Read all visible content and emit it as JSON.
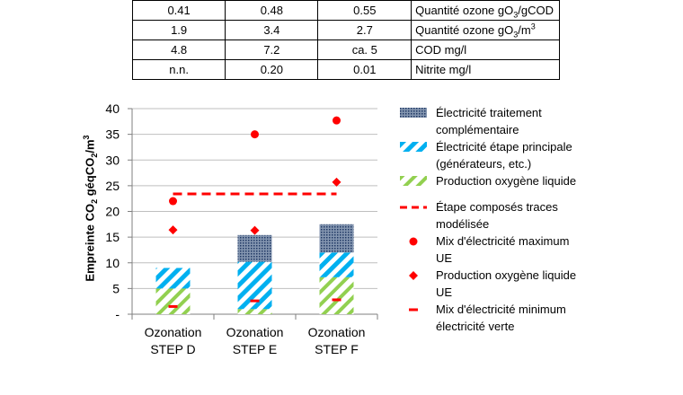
{
  "table": {
    "rows": [
      {
        "d": "0.41",
        "e": "0.48",
        "f": "0.55",
        "label": "Quantité ozone gO",
        "sub": "3",
        "suffix": "/gCOD",
        "sup": ""
      },
      {
        "d": "1.9",
        "e": "3.4",
        "f": "2.7",
        "label": "Quantité ozone gO",
        "sub": "3",
        "suffix": "/m",
        "sup": "3"
      },
      {
        "d": "4.8",
        "e": "7.2",
        "f": "ca. 5",
        "label": "COD mg/l",
        "sub": "",
        "suffix": "",
        "sup": ""
      },
      {
        "d": "n.n.",
        "e": "0.20",
        "f": "0.01",
        "label": "Nitrite mg/l",
        "sub": "",
        "suffix": "",
        "sup": ""
      }
    ]
  },
  "chart_data": {
    "type": "bar",
    "stacked": true,
    "ylabel": {
      "prefix": "Empreinte CO",
      "sub1": "2",
      "mid": " géqCO",
      "sub2": "2",
      "mid2": "/m",
      "sup": "3"
    },
    "ylim": [
      0,
      40
    ],
    "yticks": [
      "-",
      "5",
      "10",
      "15",
      "20",
      "25",
      "30",
      "35",
      "40"
    ],
    "ytick_values": [
      0,
      5,
      10,
      15,
      20,
      25,
      30,
      35,
      40
    ],
    "grid": true,
    "categories": [
      [
        "Ozonation",
        "STEP D"
      ],
      [
        "Ozonation",
        "STEP E"
      ],
      [
        "Ozonation",
        "STEP F"
      ]
    ],
    "series": [
      {
        "name": "Production oxygène liquide",
        "values": [
          5.0,
          1.0,
          7.2
        ],
        "color": "#92d050",
        "pattern": "diag-green"
      },
      {
        "name": "Électricité étape principale (générateurs, etc.)",
        "values": [
          4.0,
          9.2,
          4.8
        ],
        "color": "#00b0f0",
        "pattern": "diag-blue"
      },
      {
        "name": "Électricité traitement complémentaire",
        "values": [
          0.0,
          5.2,
          5.5
        ],
        "color": "#1f3864",
        "pattern": "dots-navy"
      }
    ],
    "line_series": {
      "name": "Étape composés traces modélisée",
      "value": 23.4,
      "color": "#ff0000"
    },
    "markers": [
      {
        "name": "Mix d'électricité maximum UE",
        "symbol": "circle",
        "values": [
          22.0,
          35.0,
          37.7
        ],
        "color": "#ff0000"
      },
      {
        "name": "Production oxygène liquide UE",
        "symbol": "diamond",
        "values": [
          16.4,
          16.3,
          25.7
        ],
        "color": "#ff0000"
      },
      {
        "name": "Mix d'électricité minimum électricité verte",
        "symbol": "dash",
        "values": [
          1.5,
          2.6,
          2.8
        ],
        "color": "#ff0000"
      }
    ],
    "legend": {
      "position": "right",
      "entries": [
        {
          "key": "s2",
          "lines": [
            "Électricité traitement",
            "complémentaire"
          ]
        },
        {
          "key": "s1",
          "lines": [
            "Électricité étape principale",
            "(générateurs, etc.)"
          ]
        },
        {
          "key": "s0",
          "lines": [
            "Production oxygène liquide"
          ]
        },
        {
          "key": "line",
          "lines": [
            "Étape composés traces",
            "modélisée"
          ]
        },
        {
          "key": "circle",
          "lines": [
            "Mix d'électricité maximum",
            "UE"
          ]
        },
        {
          "key": "diamond",
          "lines": [
            "Production oxygène liquide",
            "UE"
          ]
        },
        {
          "key": "dash",
          "lines": [
            "Mix d'électricité minimum",
            "électricité verte"
          ]
        }
      ]
    }
  }
}
